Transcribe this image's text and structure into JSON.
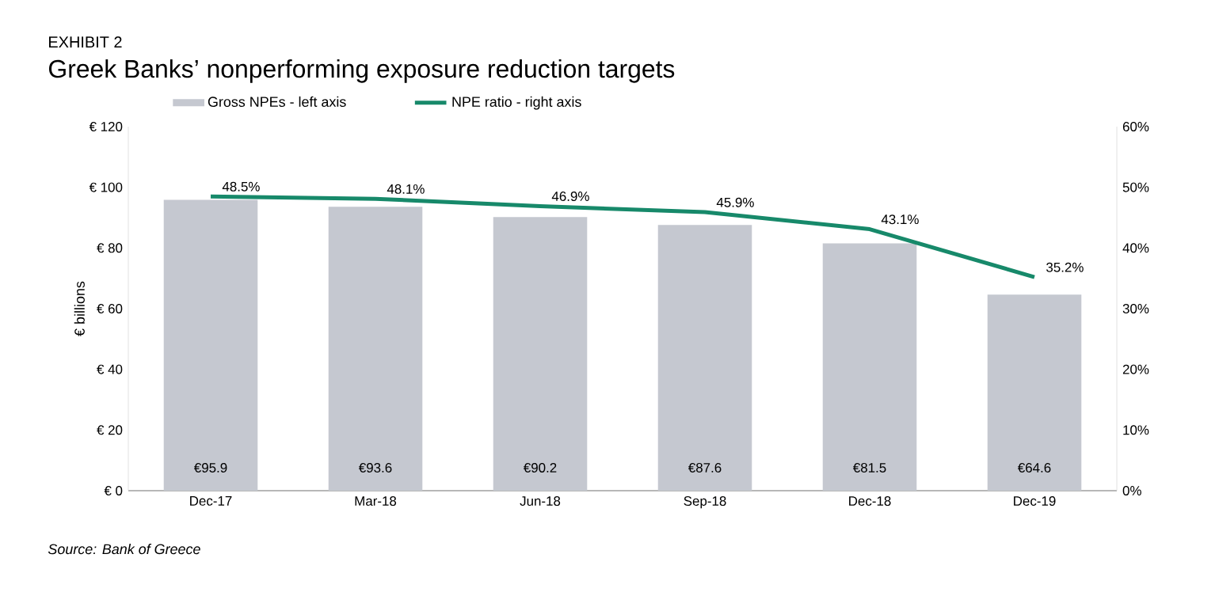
{
  "chart_data": {
    "type": "bar",
    "title": "Greek Banks’ nonperforming exposure reduction targets",
    "annotations": [
      "EXHIBIT 2",
      "Source: Bank of Greece"
    ],
    "ylabel": "€ billions",
    "categories": [
      "Dec-17",
      "Mar-18",
      "Jun-18",
      "Sep-18",
      "Dec-18",
      "Dec-19"
    ],
    "series": [
      {
        "name": "Gross NPEs - left axis",
        "color": "#c5c8d0",
        "values": [
          95.9,
          93.6,
          90.2,
          87.6,
          81.5,
          64.6
        ],
        "value_labels": [
          "€95.9",
          "€93.6",
          "€90.2",
          "€87.6",
          "€81.5",
          "€64.6"
        ]
      },
      {
        "name": "NPE ratio - right axis",
        "type": "line",
        "axis": "y2",
        "color": "#17896a",
        "values": [
          48.5,
          48.1,
          46.9,
          45.9,
          43.1,
          35.2
        ],
        "value_labels": [
          "48.5%",
          "48.1%",
          "46.9%",
          "45.9%",
          "43.1%",
          "35.2%"
        ]
      }
    ],
    "ylim": [
      0,
      120
    ],
    "yticks": [
      {
        "value": 0,
        "label": "€ 0"
      },
      {
        "value": 20,
        "label": "€ 20"
      },
      {
        "value": 40,
        "label": "€ 40"
      },
      {
        "value": 60,
        "label": "€ 60"
      },
      {
        "value": 80,
        "label": "€ 80"
      },
      {
        "value": 100,
        "label": "€ 100"
      },
      {
        "value": 120,
        "label": "€ 120"
      }
    ],
    "y2lim": [
      0,
      60
    ],
    "y2ticks": [
      {
        "value": 0,
        "label": "0%"
      },
      {
        "value": 10,
        "label": "10%"
      },
      {
        "value": 20,
        "label": "20%"
      },
      {
        "value": 30,
        "label": "30%"
      },
      {
        "value": 40,
        "label": "40%"
      },
      {
        "value": 50,
        "label": "50%"
      },
      {
        "value": 60,
        "label": "60%"
      }
    ],
    "legend": "top"
  }
}
